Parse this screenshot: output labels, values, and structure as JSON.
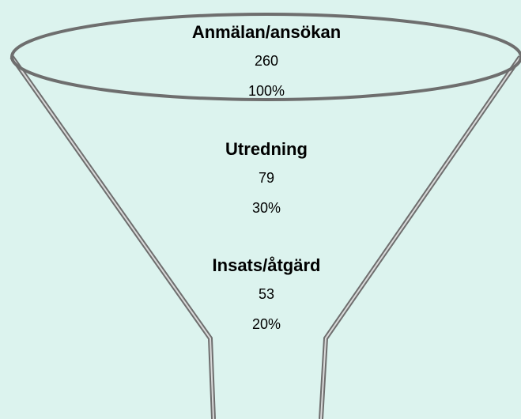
{
  "stages": [
    {
      "label": "Anmälan/ansökan",
      "count": 260,
      "percent": "100%"
    },
    {
      "label": "Utredning",
      "count": 79,
      "percent": "30%"
    },
    {
      "label": "Insats/åtgärd",
      "count": 53,
      "percent": "20%"
    }
  ]
}
